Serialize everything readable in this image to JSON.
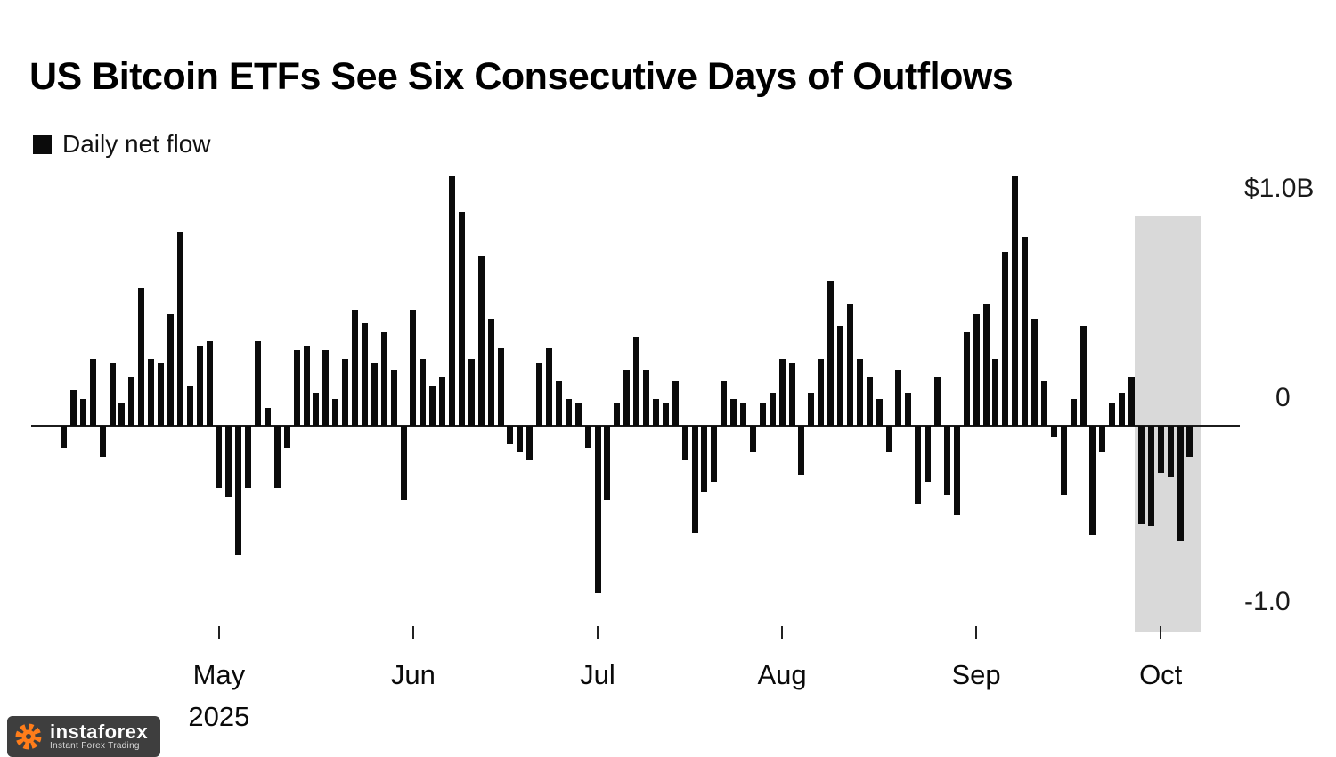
{
  "title": "US Bitcoin ETFs See Six Consecutive Days of Outflows",
  "legend": {
    "label": "Daily net flow",
    "swatch_color": "#0b0b0b"
  },
  "y_axis": {
    "top_label": "$1.0B",
    "zero_label": "0",
    "bottom_label": "-1.0"
  },
  "x_axis": {
    "months": [
      "May",
      "Jun",
      "Jul",
      "Aug",
      "Sep",
      "Oct"
    ],
    "year_label": "2025"
  },
  "logo": {
    "name": "instaforex",
    "tagline": "Instant Forex Trading"
  },
  "chart_data": {
    "type": "bar",
    "title": "US Bitcoin ETFs See Six Consecutive Days of Outflows",
    "series_name": "Daily net flow",
    "unit": "$B (billions of US dollars, daily net flow)",
    "y_tick_labels": [
      "$1.0B",
      "0",
      "-1.0"
    ],
    "y_ticks": [
      1.0,
      0,
      -1.0
    ],
    "ylim": [
      -1.1,
      1.2
    ],
    "x_months": [
      "May",
      "Jun",
      "Jul",
      "Aug",
      "Sep",
      "Oct"
    ],
    "year": "2025",
    "month_start_indices": [
      16,
      36,
      55,
      74,
      94,
      113
    ],
    "highlight_last_n": 6,
    "highlight_note_from_title": "six consecutive days of outflows",
    "bar_color": "#0b0b0b",
    "highlight_color": "#d9d9d9",
    "values": [
      -0.1,
      0.16,
      0.12,
      0.3,
      -0.14,
      0.28,
      0.1,
      0.22,
      0.62,
      0.3,
      0.28,
      0.5,
      0.87,
      0.18,
      0.36,
      0.38,
      -0.28,
      -0.32,
      -0.58,
      -0.28,
      0.38,
      0.08,
      -0.28,
      -0.1,
      0.34,
      0.36,
      0.15,
      0.34,
      0.12,
      0.3,
      0.52,
      0.46,
      0.28,
      0.42,
      0.25,
      -0.33,
      0.52,
      0.3,
      0.18,
      0.22,
      1.12,
      0.96,
      0.3,
      0.76,
      0.48,
      0.35,
      -0.08,
      -0.12,
      -0.15,
      0.28,
      0.35,
      0.2,
      0.12,
      0.1,
      -0.1,
      -0.75,
      -0.33,
      0.1,
      0.25,
      0.4,
      0.25,
      0.12,
      0.1,
      0.2,
      -0.15,
      -0.48,
      -0.3,
      -0.25,
      0.2,
      0.12,
      0.1,
      -0.12,
      0.1,
      0.15,
      0.3,
      0.28,
      -0.22,
      0.15,
      0.3,
      0.65,
      0.45,
      0.55,
      0.3,
      0.22,
      0.12,
      -0.12,
      0.25,
      0.15,
      -0.35,
      -0.25,
      0.22,
      -0.31,
      -0.4,
      0.42,
      0.5,
      0.55,
      0.3,
      0.78,
      1.12,
      0.85,
      0.48,
      0.2,
      -0.05,
      -0.31,
      0.12,
      0.45,
      -0.49,
      -0.12,
      0.1,
      0.15,
      0.22,
      -0.44,
      -0.45,
      -0.21,
      -0.23,
      -0.52,
      -0.14
    ]
  }
}
